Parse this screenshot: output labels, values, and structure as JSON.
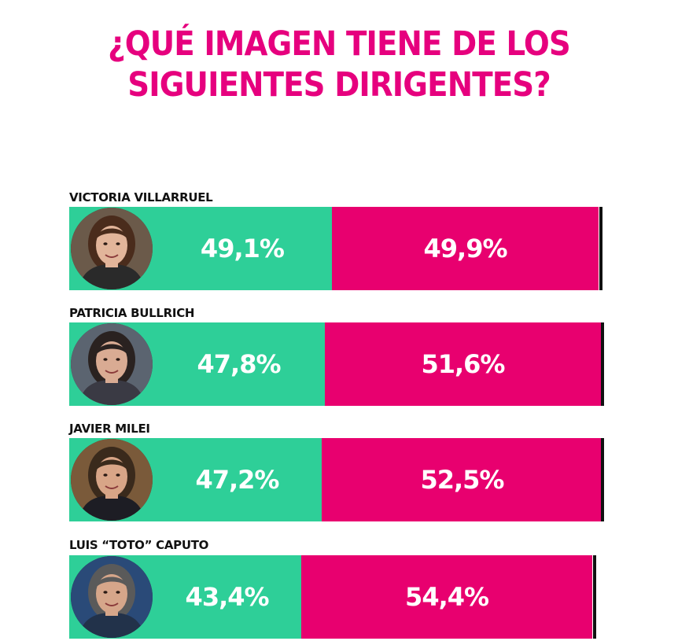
{
  "title": {
    "line1": "¿QUÉ IMAGEN TIENE DE LOS",
    "line2": "SIGUIENTES DIRIGENTES?"
  },
  "colors": {
    "title": "#e6007e",
    "positive": "#2ecf98",
    "negative": "#e8006f",
    "text_on_bar": "#ffffff"
  },
  "chart_data": {
    "type": "bar",
    "orientation": "horizontal-stacked",
    "categories": [
      "VICTORIA VILLARRUEL",
      "PATRICIA BULLRICH",
      "JAVIER MILEI",
      "LUIS “TOTO” CAPUTO"
    ],
    "series": [
      {
        "values": [
          49.1,
          47.8,
          47.2,
          43.4
        ],
        "color": "#2ecf98"
      },
      {
        "values": [
          49.9,
          51.6,
          52.5,
          54.4
        ],
        "color": "#e8006f"
      }
    ],
    "value_labels": [
      [
        "49,1%",
        "49,9%"
      ],
      [
        "47,8%",
        "51,6%"
      ],
      [
        "47,2%",
        "52,5%"
      ],
      [
        "43,4%",
        "54,4%"
      ]
    ],
    "xlim": [
      0,
      100
    ],
    "grid": false,
    "legend": "none"
  },
  "avatars": [
    {
      "icon": "portrait-victoria-villarruel-icon",
      "hair": "#4a2c1c",
      "skin": "#e2b59a",
      "clothes": "#2a2a2a",
      "bg": "#6b5a4a"
    },
    {
      "icon": "portrait-patricia-bullrich-icon",
      "hair": "#2a2220",
      "skin": "#d9ab93",
      "clothes": "#3a3a44",
      "bg": "#5b6470"
    },
    {
      "icon": "portrait-javier-milei-icon",
      "hair": "#3a2a1c",
      "skin": "#d8a587",
      "clothes": "#1d1d24",
      "bg": "#7a5a3a"
    },
    {
      "icon": "portrait-luis-caputo-icon",
      "hair": "#5a5a5a",
      "skin": "#d6a68a",
      "clothes": "#22324a",
      "bg": "#2a4a78"
    }
  ]
}
